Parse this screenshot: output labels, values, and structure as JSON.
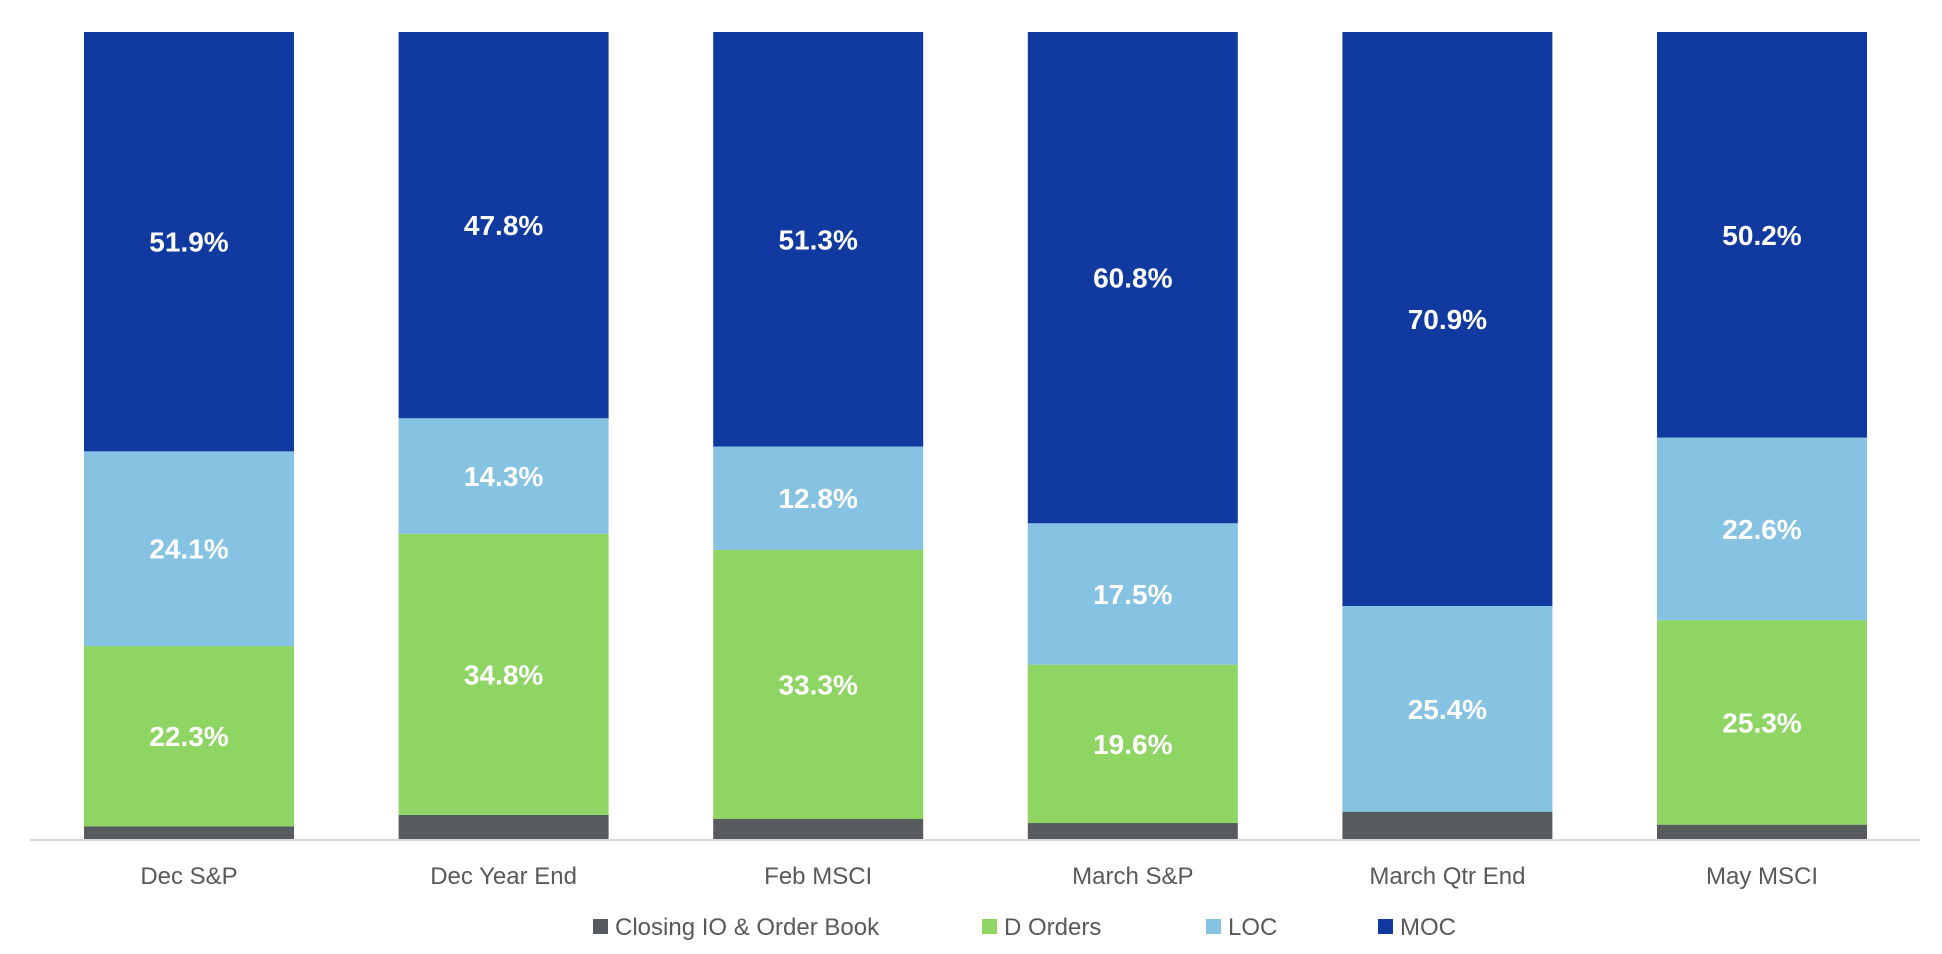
{
  "chart_data": {
    "type": "bar",
    "stacked": true,
    "normalized": true,
    "categories": [
      "Dec S&P",
      "Dec Year End",
      "Feb MSCI",
      "March S&P",
      "March Qtr End",
      "May MSCI"
    ],
    "series": [
      {
        "name": "Closing IO & Order Book",
        "color": "#575b5e",
        "values": [
          1.7,
          3.1,
          2.6,
          2.1,
          3.5,
          1.9
        ],
        "labels": [
          "",
          "",
          "",
          "",
          "",
          ""
        ]
      },
      {
        "name": "D Orders",
        "color": "#8fd564",
        "values": [
          22.3,
          34.8,
          33.3,
          19.6,
          0,
          25.3
        ],
        "labels": [
          "22.3%",
          "34.8%",
          "33.3%",
          "19.6%",
          "",
          "25.3%"
        ]
      },
      {
        "name": "LOC",
        "color": "#86c3e3",
        "values": [
          24.1,
          14.3,
          12.8,
          17.5,
          25.4,
          22.6
        ],
        "labels": [
          "24.1%",
          "14.3%",
          "12.8%",
          "17.5%",
          "25.4%",
          "22.6%"
        ]
      },
      {
        "name": "MOC",
        "color": "#103a9f",
        "values": [
          51.9,
          47.8,
          51.3,
          60.8,
          70.9,
          50.2
        ],
        "labels": [
          "51.9%",
          "47.8%",
          "51.3%",
          "60.8%",
          "70.9%",
          "50.2%"
        ]
      }
    ],
    "ylim": [
      0,
      100
    ],
    "grid": false,
    "legend": "bottom"
  }
}
